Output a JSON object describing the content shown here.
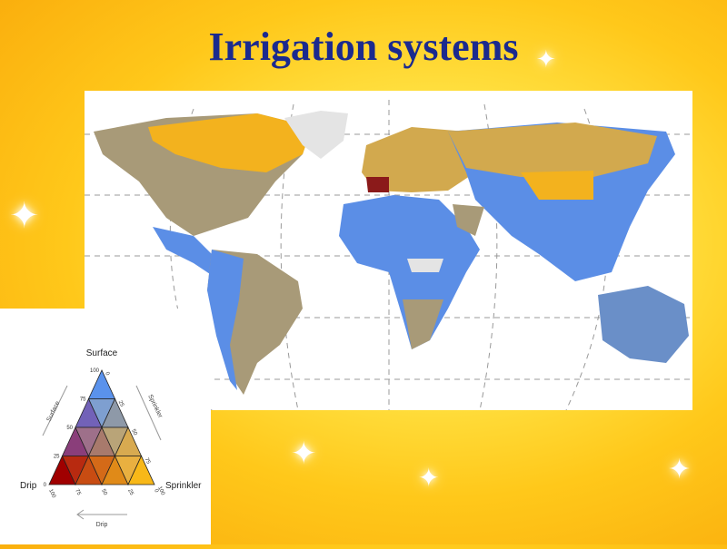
{
  "slide": {
    "title": "Irrigation systems"
  },
  "map": {
    "colors": {
      "surface": "#5b8ee6",
      "sprinkler": "#f3b21e",
      "drip": "#8b1a1a",
      "mixed_surface_sprinkler": "#a89a78",
      "no_data": "#e4e4e4",
      "mixed_blue": "#6a8fc8"
    }
  },
  "legend": {
    "top_label": "Surface",
    "left_label": "Drip",
    "right_label": "Sprinkler",
    "arrow_surface": "Surface",
    "arrow_sprinkler": "Sprinkler",
    "arrow_drip": "Drip",
    "surface_ticks": [
      "100",
      "75",
      "50",
      "25",
      "0"
    ],
    "sprinkler_ticks": [
      "0",
      "25",
      "50",
      "75",
      "100"
    ],
    "drip_ticks": [
      "100",
      "75",
      "50",
      "25",
      "0"
    ],
    "cell_colors": [
      [
        "#5a92ec"
      ],
      [
        "#7262b8",
        "#7e9fd0",
        "#8e99a8"
      ],
      [
        "#8a3e7a",
        "#9e708a",
        "#a87a6c",
        "#b9a478",
        "#d8aa50"
      ],
      [
        "#a00000",
        "#b82a10",
        "#c84c12",
        "#d46a18",
        "#e08a18",
        "#e9b040",
        "#f8b818"
      ]
    ]
  }
}
